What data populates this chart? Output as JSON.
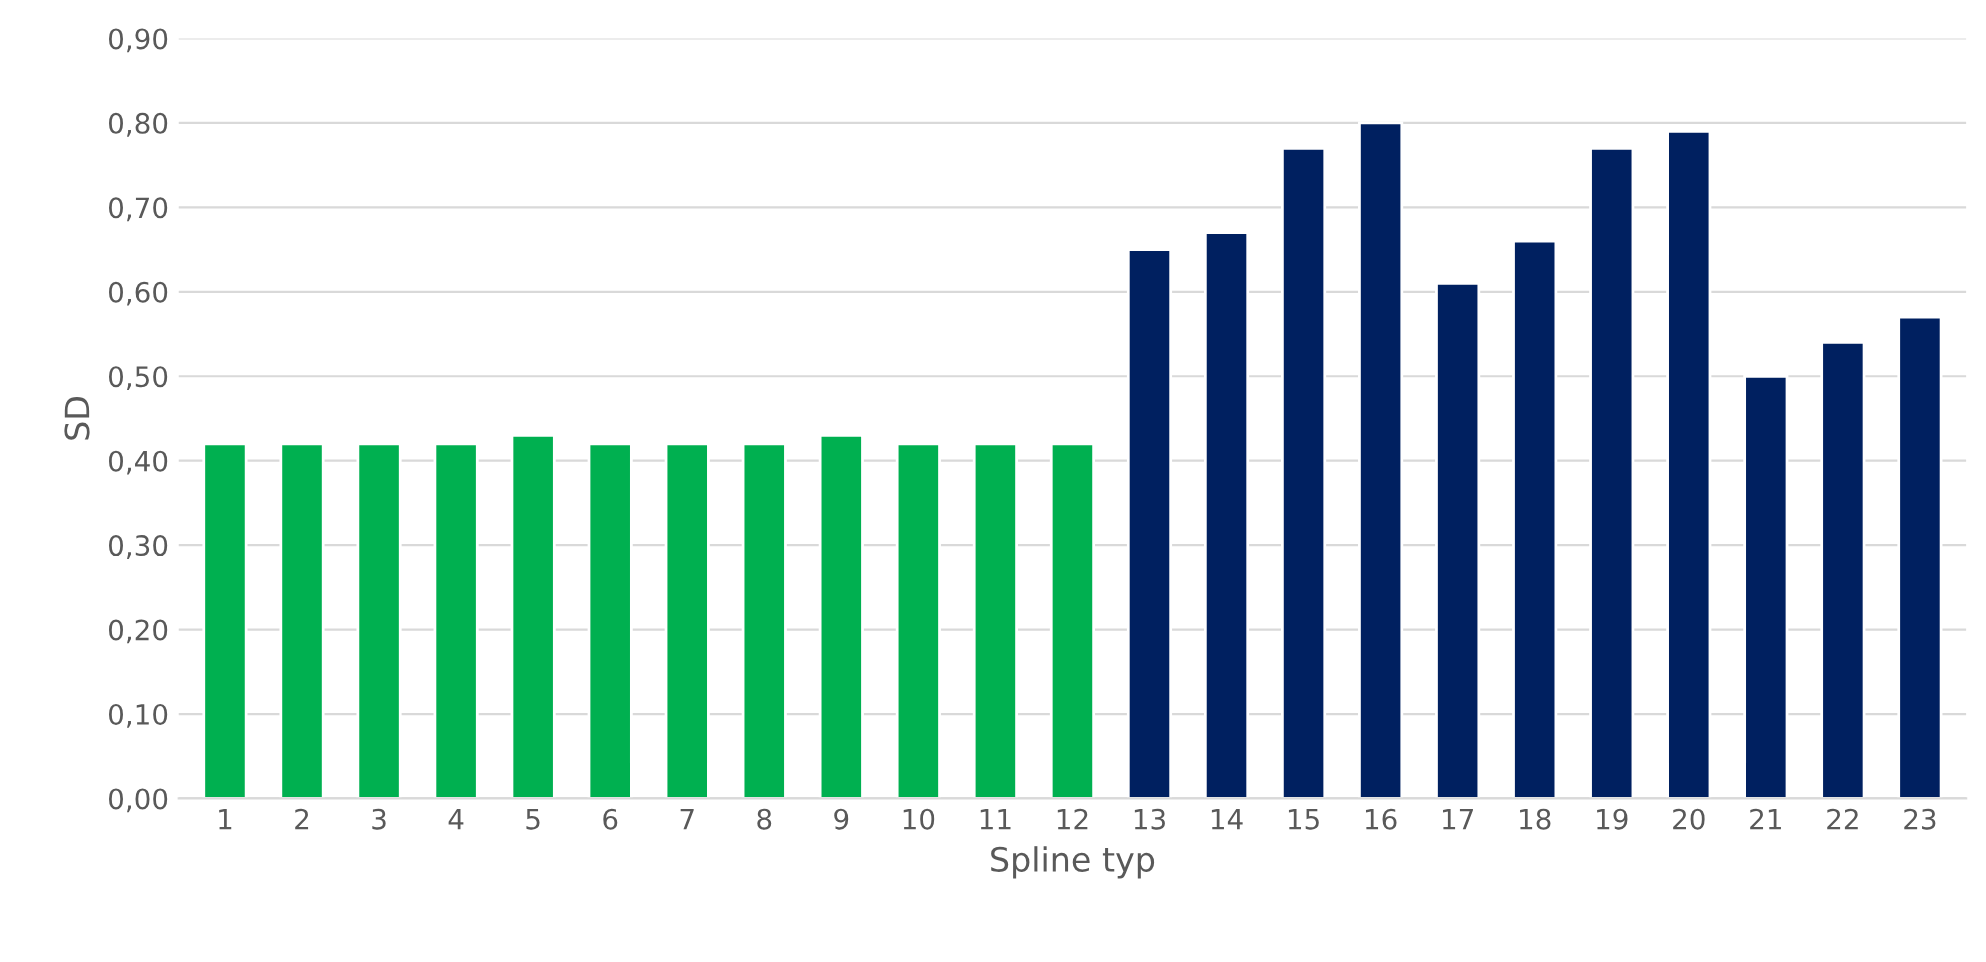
{
  "chart_data": {
    "type": "bar",
    "xlabel": "Spline typ",
    "ylabel": "SD",
    "categories": [
      "1",
      "2",
      "3",
      "4",
      "5",
      "6",
      "7",
      "8",
      "9",
      "10",
      "11",
      "12",
      "13",
      "14",
      "15",
      "16",
      "17",
      "18",
      "19",
      "20",
      "21",
      "22",
      "23"
    ],
    "values": [
      0.42,
      0.42,
      0.42,
      0.42,
      0.43,
      0.42,
      0.42,
      0.42,
      0.43,
      0.42,
      0.42,
      0.42,
      0.65,
      0.67,
      0.77,
      0.8,
      0.61,
      0.66,
      0.77,
      0.79,
      0.5,
      0.54,
      0.57
    ],
    "colors": [
      "#00b050",
      "#00b050",
      "#00b050",
      "#00b050",
      "#00b050",
      "#00b050",
      "#00b050",
      "#00b050",
      "#00b050",
      "#00b050",
      "#00b050",
      "#00b050",
      "#002060",
      "#002060",
      "#002060",
      "#002060",
      "#002060",
      "#002060",
      "#002060",
      "#002060",
      "#002060",
      "#002060",
      "#002060"
    ],
    "ylim": [
      0,
      0.9
    ],
    "yticks": [
      {
        "value": 0,
        "label": "0,00"
      },
      {
        "value": 0.1,
        "label": "0,10"
      },
      {
        "value": 0.2,
        "label": "0,20"
      },
      {
        "value": 0.3,
        "label": "0,30"
      },
      {
        "value": 0.4,
        "label": "0,40"
      },
      {
        "value": 0.5,
        "label": "0,50"
      },
      {
        "value": 0.6,
        "label": "0,60"
      },
      {
        "value": 0.7,
        "label": "0,70"
      },
      {
        "value": 0.8,
        "label": "0,80"
      },
      {
        "value": 0.9,
        "label": "0,90"
      }
    ],
    "grid": "y",
    "legend": false
  }
}
